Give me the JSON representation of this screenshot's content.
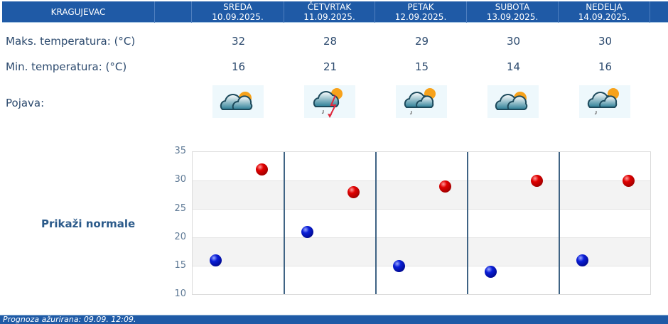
{
  "header": {
    "city": "KRAGUJEVAC",
    "days": [
      {
        "day": "SREDA",
        "date": "10.09.2025."
      },
      {
        "day": "ČETVRTAK",
        "date": "11.09.2025."
      },
      {
        "day": "PETAK",
        "date": "12.09.2025."
      },
      {
        "day": "SUBOTA",
        "date": "13.09.2025."
      },
      {
        "day": "NEDELJA",
        "date": "14.09.2025."
      }
    ]
  },
  "rows": {
    "max_label": "Maks. temperatura: (°C)",
    "min_label": "Min. temperatura: (°C)",
    "phenomenon_label": "Pojava:",
    "max_values": [
      "32",
      "28",
      "29",
      "30",
      "30"
    ],
    "min_values": [
      "16",
      "21",
      "15",
      "14",
      "16"
    ],
    "icons": [
      "partly-cloudy-icon",
      "thunderstorm-rain-icon",
      "partly-cloudy-light-rain-icon",
      "partly-cloudy-icon",
      "partly-cloudy-light-rain-icon"
    ]
  },
  "normals_link": "Prikaži normale",
  "colors": {
    "header_bg": "#1f5aa6",
    "text": "#2c4a6e",
    "max_dot": "#d00000",
    "min_dot": "#0010c8"
  },
  "chart_data": {
    "type": "scatter",
    "title": "",
    "xlabel": "",
    "ylabel": "",
    "categories": [
      "SREDA 10.09.2025.",
      "ČETVRTAK 11.09.2025.",
      "PETAK 12.09.2025.",
      "SUBOTA 13.09.2025.",
      "NEDELJA 14.09.2025."
    ],
    "series": [
      {
        "name": "Maks. temperatura",
        "color": "#d00000",
        "values": [
          32,
          28,
          29,
          30,
          30
        ]
      },
      {
        "name": "Min. temperatura",
        "color": "#0010c8",
        "values": [
          16,
          21,
          15,
          14,
          16
        ]
      }
    ],
    "yticks": [
      "35",
      "30",
      "25",
      "20",
      "15",
      "10"
    ],
    "ylim": [
      10,
      35
    ],
    "grid": true,
    "legend": "none"
  },
  "footer": {
    "text": "Prognoza ažurirana:  09.09. 12:09."
  }
}
